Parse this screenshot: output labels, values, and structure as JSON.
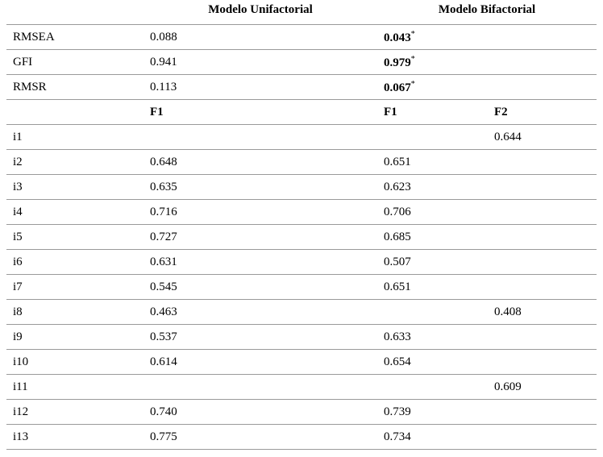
{
  "header": {
    "columns": [
      "Modelo Unifactorial",
      "Modelo Bifactorial"
    ]
  },
  "fit_indices": [
    {
      "label": "RMSEA",
      "unifactorial": "0.088",
      "bifactorial": "0.043",
      "bifactorial_mark": "*"
    },
    {
      "label": "GFI",
      "unifactorial": "0.941",
      "bifactorial": "0.979",
      "bifactorial_mark": "*"
    },
    {
      "label": "RMSR",
      "unifactorial": "0.113",
      "bifactorial": "0.067",
      "bifactorial_mark": "*"
    }
  ],
  "factor_header": [
    "F1",
    "F1",
    "F2"
  ],
  "items": [
    {
      "label": "i1",
      "values": [
        null,
        null,
        "0.644"
      ]
    },
    {
      "label": "i2",
      "values": [
        "0.648",
        "0.651",
        null
      ]
    },
    {
      "label": "i3",
      "values": [
        "0.635",
        "0.623",
        null
      ]
    },
    {
      "label": "i4",
      "values": [
        "0.716",
        "0.706",
        null
      ]
    },
    {
      "label": "i5",
      "values": [
        "0.727",
        "0.685",
        null
      ]
    },
    {
      "label": "i6",
      "values": [
        "0.631",
        "0.507",
        null
      ]
    },
    {
      "label": "i7",
      "values": [
        "0.545",
        "0.651",
        null
      ]
    },
    {
      "label": "i8",
      "values": [
        "0.463",
        null,
        "0.408"
      ]
    },
    {
      "label": "i9",
      "values": [
        "0.537",
        "0.633",
        null
      ]
    },
    {
      "label": "i10",
      "values": [
        "0.614",
        "0.654",
        null
      ]
    },
    {
      "label": "i11",
      "values": [
        null,
        null,
        "0.609"
      ]
    },
    {
      "label": "i12",
      "values": [
        "0.740",
        "0.739",
        null
      ]
    },
    {
      "label": "i13",
      "values": [
        "0.775",
        "0.734",
        null
      ]
    }
  ]
}
